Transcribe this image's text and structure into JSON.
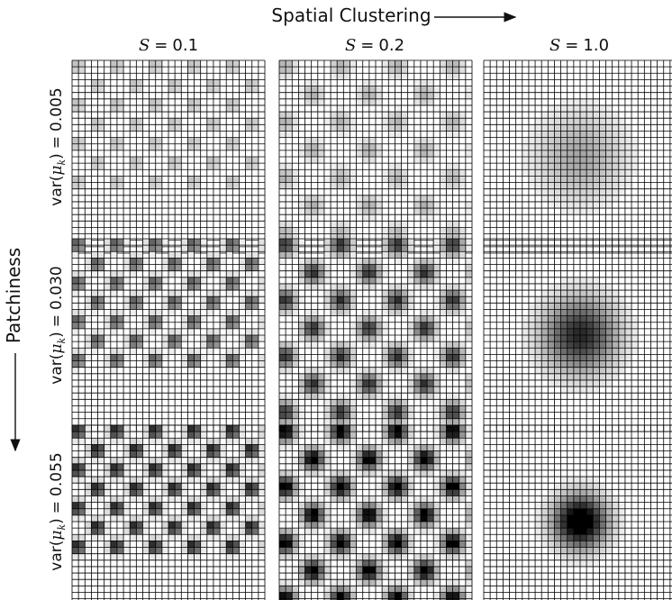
{
  "figure": {
    "x_axis_title": "Spatial Clustering",
    "y_axis_title": "Patchiness",
    "columns": [
      {
        "symbol": "S",
        "operator": "=",
        "value": "0.1"
      },
      {
        "symbol": "S",
        "operator": "=",
        "value": "0.2"
      },
      {
        "symbol": "S",
        "operator": "=",
        "value": "1.0"
      }
    ],
    "rows": [
      {
        "func": "var(",
        "symbol": "μ",
        "sub": "k",
        "close": ")",
        "operator": "=",
        "value": "0.005"
      },
      {
        "func": "var(",
        "symbol": "μ",
        "sub": "k",
        "close": ")",
        "operator": "=",
        "value": "0.030"
      },
      {
        "func": "var(",
        "symbol": "μ",
        "sub": "k",
        "close": ")",
        "operator": "=",
        "value": "0.055"
      }
    ],
    "grid": {
      "cells_per_side": 30
    },
    "colors": {
      "grid_line": "#000000",
      "cell_empty": "#ffffff",
      "max_intensity": "#000000"
    }
  }
}
